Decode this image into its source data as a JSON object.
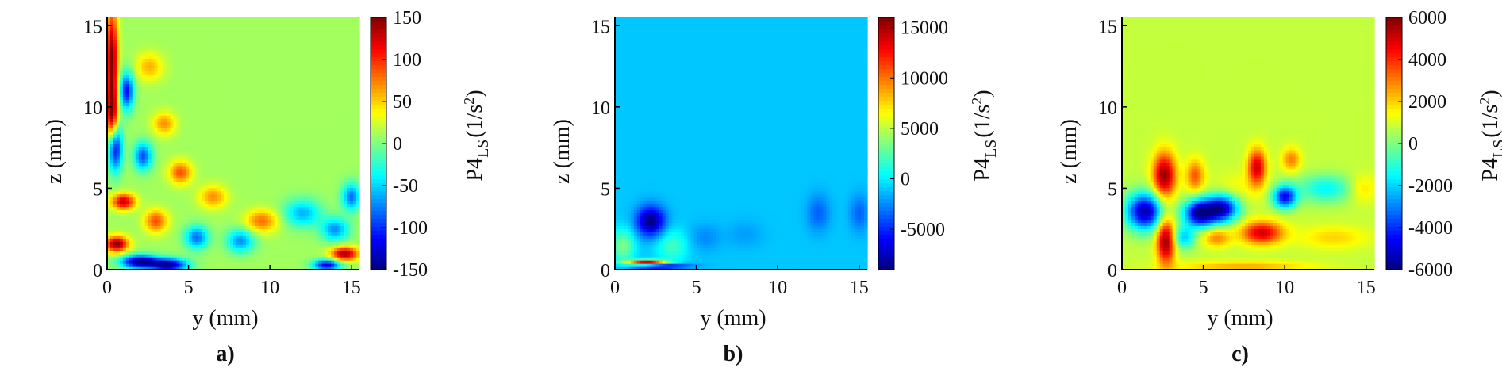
{
  "chart_data": [
    {
      "type": "heatmap",
      "panel_label": "a)",
      "xlabel": "y (mm)",
      "ylabel": "z (mm)",
      "xlim": [
        0,
        15.5
      ],
      "ylim": [
        0,
        15.5
      ],
      "xticks": [
        0,
        5,
        10,
        15
      ],
      "yticks": [
        0,
        5,
        10,
        15
      ],
      "colorbar": {
        "label_main": "P4",
        "label_sub": "LS",
        "label_unit": "(1/s",
        "label_sup": "2",
        "label_close": ")",
        "range": [
          -150,
          150
        ],
        "ticks": [
          -150,
          -100,
          -50,
          0,
          50,
          100,
          150
        ],
        "colormap": "jet"
      },
      "background_value": 10,
      "features": [
        {
          "y": 0.3,
          "z": 13.0,
          "value": 150,
          "sy": 0.25,
          "sz": 2.2
        },
        {
          "y": 0.3,
          "z": 9.5,
          "value": 120,
          "sy": 0.25,
          "sz": 1.2
        },
        {
          "y": 0.5,
          "z": 7.5,
          "value": -120,
          "sy": 0.3,
          "sz": 1.0
        },
        {
          "y": 0.6,
          "z": 1.6,
          "value": 150,
          "sy": 0.5,
          "sz": 0.35
        },
        {
          "y": 1.0,
          "z": 4.2,
          "value": 130,
          "sy": 0.5,
          "sz": 0.35
        },
        {
          "y": 1.2,
          "z": 11.0,
          "value": -110,
          "sy": 0.3,
          "sz": 0.8
        },
        {
          "y": 2.0,
          "z": 0.5,
          "value": -150,
          "sy": 0.8,
          "sz": 0.3
        },
        {
          "y": 3.8,
          "z": 0.3,
          "value": -140,
          "sy": 0.8,
          "sz": 0.3
        },
        {
          "y": 2.2,
          "z": 7.0,
          "value": -90,
          "sy": 0.4,
          "sz": 0.6
        },
        {
          "y": 3.0,
          "z": 3.0,
          "value": 90,
          "sy": 0.5,
          "sz": 0.5
        },
        {
          "y": 4.5,
          "z": 6.0,
          "value": 90,
          "sy": 0.5,
          "sz": 0.5
        },
        {
          "y": 3.5,
          "z": 9.0,
          "value": 70,
          "sy": 0.5,
          "sz": 0.5
        },
        {
          "y": 2.6,
          "z": 12.5,
          "value": 60,
          "sy": 0.6,
          "sz": 0.6
        },
        {
          "y": 5.5,
          "z": 2.0,
          "value": -80,
          "sy": 0.5,
          "sz": 0.5
        },
        {
          "y": 6.5,
          "z": 4.5,
          "value": 70,
          "sy": 0.6,
          "sz": 0.5
        },
        {
          "y": 8.2,
          "z": 1.8,
          "value": -70,
          "sy": 0.6,
          "sz": 0.5
        },
        {
          "y": 9.5,
          "z": 3.0,
          "value": 80,
          "sy": 0.7,
          "sz": 0.5
        },
        {
          "y": 12.0,
          "z": 3.5,
          "value": -60,
          "sy": 0.8,
          "sz": 0.6
        },
        {
          "y": 14.0,
          "z": 2.5,
          "value": -70,
          "sy": 0.6,
          "sz": 0.5
        },
        {
          "y": 14.6,
          "z": 1.0,
          "value": 140,
          "sy": 0.6,
          "sz": 0.3
        },
        {
          "y": 13.5,
          "z": 0.3,
          "value": -120,
          "sy": 0.6,
          "sz": 0.25
        },
        {
          "y": 15.0,
          "z": 4.5,
          "value": -80,
          "sy": 0.4,
          "sz": 0.6
        }
      ]
    },
    {
      "type": "heatmap",
      "panel_label": "b)",
      "xlabel": "y (mm)",
      "ylabel": "z (mm)",
      "xlim": [
        0,
        15.5
      ],
      "ylim": [
        0,
        15.5
      ],
      "xticks": [
        0,
        5,
        10,
        15
      ],
      "yticks": [
        0,
        5,
        10,
        15
      ],
      "colorbar": {
        "label_main": "P4",
        "label_sub": "LS",
        "label_unit": "(1/s",
        "label_sup": "2",
        "label_close": ")",
        "range": [
          -9000,
          16000
        ],
        "ticks": [
          -5000,
          0,
          5000,
          10000,
          15000
        ],
        "colormap": "jet"
      },
      "background_value": -1000,
      "features": [
        {
          "y": 2.2,
          "z": 3.0,
          "value": -9000,
          "sy": 0.6,
          "sz": 0.65
        },
        {
          "y": 2.0,
          "z": 0.45,
          "value": 16000,
          "sy": 0.9,
          "sz": 0.12
        },
        {
          "y": 2.7,
          "z": 0.25,
          "value": -8500,
          "sy": 1.2,
          "sz": 0.15
        },
        {
          "y": 0.5,
          "z": 1.5,
          "value": 3500,
          "sy": 0.5,
          "sz": 0.7
        },
        {
          "y": 3.5,
          "z": 1.5,
          "value": 2000,
          "sy": 0.7,
          "sz": 0.7
        },
        {
          "y": 5.5,
          "z": 2.0,
          "value": -2500,
          "sy": 0.7,
          "sz": 0.6
        },
        {
          "y": 8.0,
          "z": 2.2,
          "value": -2000,
          "sy": 0.8,
          "sz": 0.6
        },
        {
          "y": 12.5,
          "z": 3.5,
          "value": -3500,
          "sy": 0.5,
          "sz": 0.8
        },
        {
          "y": 15.0,
          "z": 3.5,
          "value": -3500,
          "sy": 0.4,
          "sz": 0.8
        }
      ]
    },
    {
      "type": "heatmap",
      "panel_label": "c)",
      "xlabel": "y (mm)",
      "ylabel": "z (mm)",
      "xlim": [
        0,
        15.5
      ],
      "ylim": [
        0,
        15.5
      ],
      "xticks": [
        0,
        5,
        10,
        15
      ],
      "yticks": [
        0,
        5,
        10,
        15
      ],
      "colorbar": {
        "label_main": "P4",
        "label_sub": "LS",
        "label_unit": "(1/s",
        "label_sup": "2",
        "label_close": ")",
        "range": [
          -6000,
          6000
        ],
        "ticks": [
          -6000,
          -4000,
          -2000,
          0,
          2000,
          4000,
          6000
        ],
        "colormap": "jet"
      },
      "background_value": 800,
      "features": [
        {
          "y": 2.6,
          "z": 5.8,
          "value": 5800,
          "sy": 0.5,
          "sz": 1.0
        },
        {
          "y": 2.7,
          "z": 1.8,
          "value": 6000,
          "sy": 0.4,
          "sz": 1.0
        },
        {
          "y": 1.4,
          "z": 3.6,
          "value": -5500,
          "sy": 0.8,
          "sz": 0.8
        },
        {
          "y": 4.8,
          "z": 3.5,
          "value": -5800,
          "sy": 0.7,
          "sz": 0.6
        },
        {
          "y": 6.2,
          "z": 3.8,
          "value": -5000,
          "sy": 0.7,
          "sz": 0.6
        },
        {
          "y": 4.5,
          "z": 5.8,
          "value": 3500,
          "sy": 0.4,
          "sz": 0.7
        },
        {
          "y": 8.3,
          "z": 6.3,
          "value": 5000,
          "sy": 0.4,
          "sz": 0.8
        },
        {
          "y": 10.0,
          "z": 4.5,
          "value": -4500,
          "sy": 0.5,
          "sz": 0.5
        },
        {
          "y": 10.4,
          "z": 6.8,
          "value": 3000,
          "sy": 0.4,
          "sz": 0.5
        },
        {
          "y": 8.6,
          "z": 2.3,
          "value": 5000,
          "sy": 0.9,
          "sz": 0.5
        },
        {
          "y": 5.8,
          "z": 2.0,
          "value": 3000,
          "sy": 0.6,
          "sz": 0.4
        },
        {
          "y": 7.0,
          "z": 5.0,
          "value": 1500,
          "sy": 0.9,
          "sz": 0.7
        },
        {
          "y": 3.8,
          "z": 2.0,
          "value": -2000,
          "sy": 0.5,
          "sz": 0.5
        },
        {
          "y": 13.0,
          "z": 2.0,
          "value": 2000,
          "sy": 1.5,
          "sz": 0.5
        },
        {
          "y": 12.5,
          "z": 5.0,
          "value": -1500,
          "sy": 1.2,
          "sz": 0.6
        },
        {
          "y": 14.8,
          "z": 5.0,
          "value": 2000,
          "sy": 0.6,
          "sz": 0.6
        },
        {
          "y": 7.5,
          "z": 0.2,
          "value": 2500,
          "sy": 3.0,
          "sz": 0.25
        }
      ]
    }
  ]
}
